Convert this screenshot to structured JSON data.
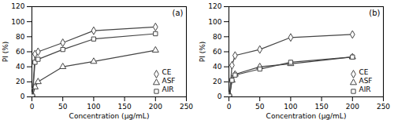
{
  "chart_data": [
    {
      "type": "line",
      "title": "(a)",
      "xlabel": "Concentration (μg/mL)",
      "ylabel": "PI (%)",
      "x": [
        1,
        5,
        10,
        50,
        100,
        200
      ],
      "series": [
        {
          "name": "CE",
          "color": "#444444",
          "marker": "diamond",
          "values": [
            2,
            57,
            60,
            72,
            88,
            93
          ],
          "errors": [
            1,
            2,
            2,
            2,
            2,
            1
          ]
        },
        {
          "name": "ASF",
          "color": "#444444",
          "marker": "triangle",
          "values": [
            1,
            13,
            20,
            40,
            47,
            62
          ],
          "errors": [
            1,
            2,
            2,
            2,
            2,
            2
          ]
        },
        {
          "name": "AIR",
          "color": "#444444",
          "marker": "square",
          "values": [
            1,
            46,
            50,
            63,
            77,
            84
          ],
          "errors": [
            1,
            2,
            2,
            2,
            2,
            2
          ]
        }
      ],
      "xlim": [
        0,
        250
      ],
      "xticks": [
        0,
        50,
        100,
        150,
        200,
        250
      ],
      "ylim": [
        0,
        120
      ],
      "yticks": [
        0,
        20,
        40,
        60,
        80,
        100,
        120
      ],
      "legend": "lower right"
    },
    {
      "type": "line",
      "title": "(b)",
      "xlabel": "Concentration (μg/mL)",
      "ylabel": "PI (%)",
      "x": [
        1,
        5,
        10,
        50,
        100,
        200
      ],
      "series": [
        {
          "name": "CE",
          "color": "#444444",
          "marker": "diamond",
          "values": [
            2,
            42,
            55,
            63,
            79,
            83
          ],
          "errors": [
            1,
            2,
            2,
            2,
            2,
            2
          ]
        },
        {
          "name": "ASF",
          "color": "#444444",
          "marker": "triangle",
          "values": [
            1,
            22,
            30,
            40,
            44,
            53
          ],
          "errors": [
            1,
            2,
            2,
            2,
            2,
            2
          ]
        },
        {
          "name": "AIR",
          "color": "#444444",
          "marker": "square",
          "values": [
            1,
            22,
            29,
            37,
            46,
            53
          ],
          "errors": [
            1,
            2,
            2,
            2,
            2,
            2
          ]
        }
      ],
      "xlim": [
        0,
        250
      ],
      "xticks": [
        0,
        50,
        100,
        150,
        200,
        250
      ],
      "ylim": [
        0,
        120
      ],
      "yticks": [
        0,
        20,
        40,
        60,
        80,
        100,
        120
      ],
      "legend": "lower right"
    }
  ]
}
